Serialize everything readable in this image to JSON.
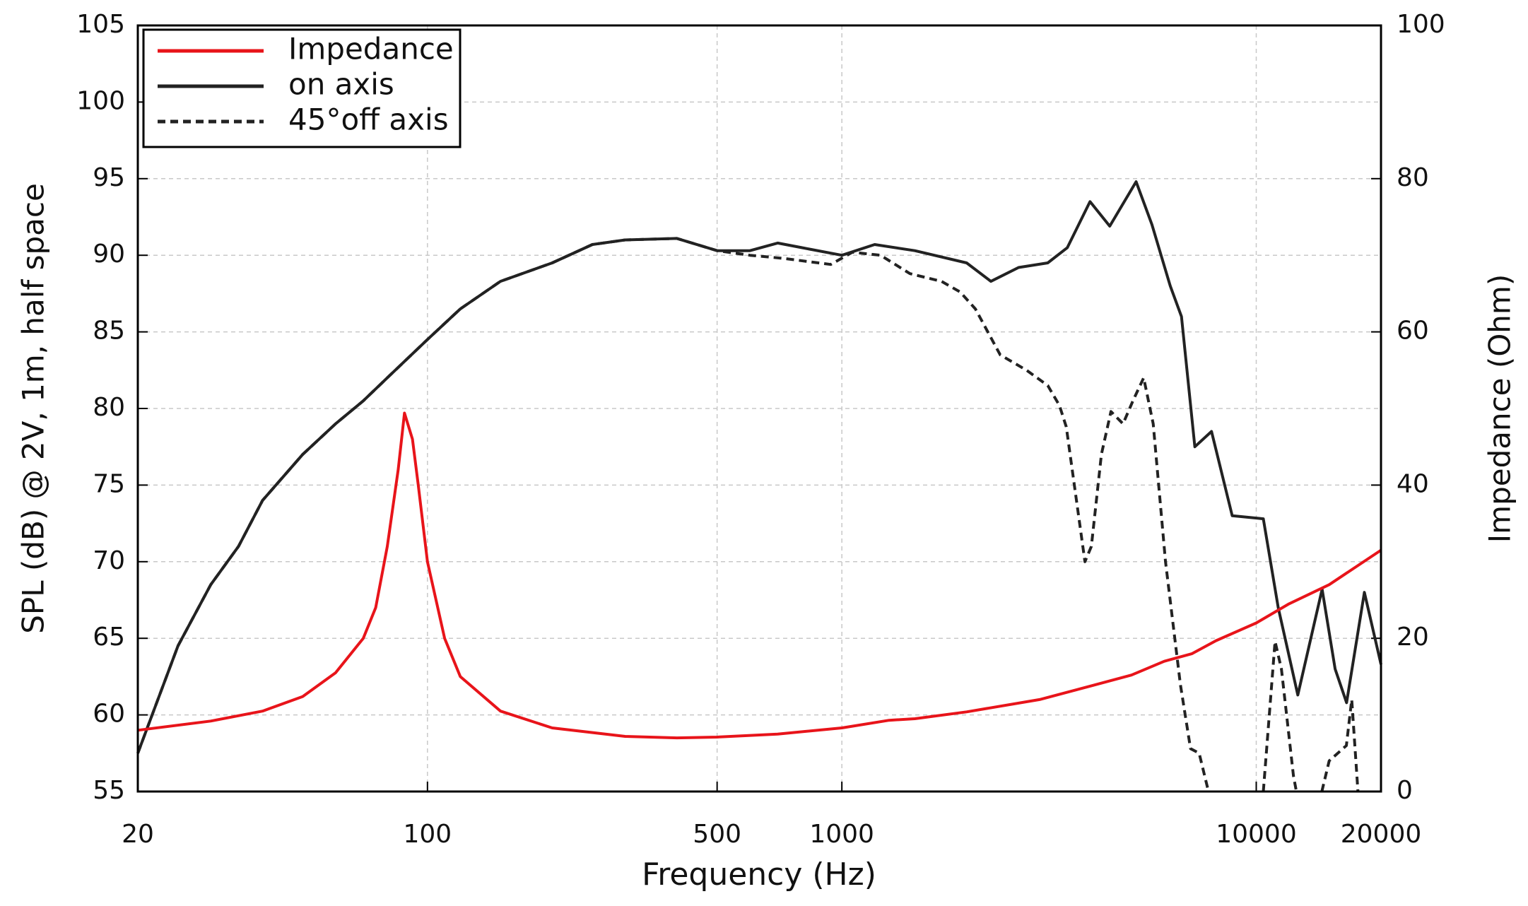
{
  "chart_data": {
    "type": "line",
    "xlabel": "Frequency (Hz)",
    "ylabel": "SPL (dB) @ 2V, 1m, half space",
    "y2label": "Impedance (Ohm)",
    "xscale": "log",
    "xlim": [
      20,
      20000
    ],
    "xticks": [
      20,
      100,
      500,
      1000,
      10000,
      20000
    ],
    "ylim": [
      55,
      105
    ],
    "yticks": [
      55,
      60,
      65,
      70,
      75,
      80,
      85,
      90,
      95,
      100,
      105
    ],
    "y2lim": [
      0,
      100
    ],
    "y2ticks": [
      0,
      20,
      40,
      60,
      80,
      100
    ],
    "grid": true,
    "legend": "upper left",
    "series": [
      {
        "name": "Impedance",
        "color": "#e8141a",
        "dashed": false,
        "axis": "y2",
        "x": [
          20,
          30,
          40,
          50,
          60,
          70,
          75,
          80,
          85,
          88,
          92,
          95,
          100,
          110,
          120,
          150,
          200,
          300,
          400,
          500,
          700,
          1000,
          1300,
          1500,
          2000,
          3000,
          4000,
          5000,
          6000,
          7000,
          8000,
          10000,
          12000,
          15000,
          20000
        ],
        "values": [
          8.0,
          9.2,
          10.5,
          12.4,
          15.5,
          20,
          24,
          32,
          42,
          49.4,
          46,
          40,
          30,
          20,
          15,
          10.5,
          8.3,
          7.2,
          7.0,
          7.1,
          7.5,
          8.3,
          9.3,
          9.5,
          10.4,
          12,
          13.8,
          15.2,
          17,
          18,
          19.7,
          22,
          24.5,
          27,
          31.5
        ]
      },
      {
        "name": "on axis",
        "color": "#222222",
        "dashed": false,
        "x": [
          20,
          22,
          25,
          30,
          35,
          40,
          50,
          60,
          70,
          80,
          100,
          120,
          150,
          200,
          250,
          300,
          400,
          500,
          600,
          700,
          800,
          1000,
          1200,
          1500,
          2000,
          2290,
          2670,
          3140,
          3500,
          3970,
          4430,
          5130,
          5600,
          6200,
          6600,
          7110,
          7800,
          8750,
          10400,
          11300,
          12600,
          14420,
          15500,
          16520,
          18240,
          20000
        ],
        "values": [
          57.5,
          60.5,
          64.5,
          68.5,
          71,
          74,
          77,
          79,
          80.5,
          82,
          84.5,
          86.5,
          88.3,
          89.5,
          90.7,
          91,
          91.1,
          90.3,
          90.3,
          90.8,
          90.5,
          90,
          90.7,
          90.3,
          89.5,
          88.3,
          89.2,
          89.5,
          90.5,
          93.5,
          91.9,
          94.8,
          92,
          88,
          86,
          77.5,
          78.5,
          73,
          72.8,
          67,
          61.3,
          68.2,
          63,
          60.8,
          68,
          63.3
        ]
      },
      {
        "name": "45°off axis",
        "color": "#222222",
        "dashed": true,
        "x": [
          20,
          22,
          25,
          30,
          35,
          40,
          50,
          60,
          70,
          80,
          100,
          120,
          150,
          200,
          250,
          300,
          400,
          500,
          600,
          720,
          940,
          1060,
          1240,
          1460,
          1740,
          1930,
          2100,
          2410,
          2790,
          3140,
          3350,
          3480,
          3860,
          4000,
          4230,
          4460,
          4770,
          5040,
          5350,
          5640,
          6040,
          6560,
          6940,
          7280,
          7670,
          9000,
          10400,
          11100,
          11500,
          12300,
          12500,
          13500,
          14400,
          15000,
          16500,
          17000,
          17600
        ],
        "values": [
          57.5,
          60.5,
          64.5,
          68.5,
          71,
          74,
          77,
          79,
          80.5,
          82,
          84.5,
          86.5,
          88.3,
          89.5,
          90.7,
          91,
          91.1,
          90.3,
          90.0,
          89.8,
          89.4,
          90.2,
          90.0,
          88.8,
          88.3,
          87.6,
          86.5,
          83.5,
          82.5,
          81.5,
          80.2,
          78.8,
          70,
          71,
          77,
          79.8,
          79,
          80.5,
          82,
          79,
          70,
          62,
          57.8,
          57.5,
          55,
          null,
          55,
          64.8,
          63,
          56,
          55,
          null,
          55,
          57,
          58,
          61,
          55
        ]
      }
    ]
  }
}
